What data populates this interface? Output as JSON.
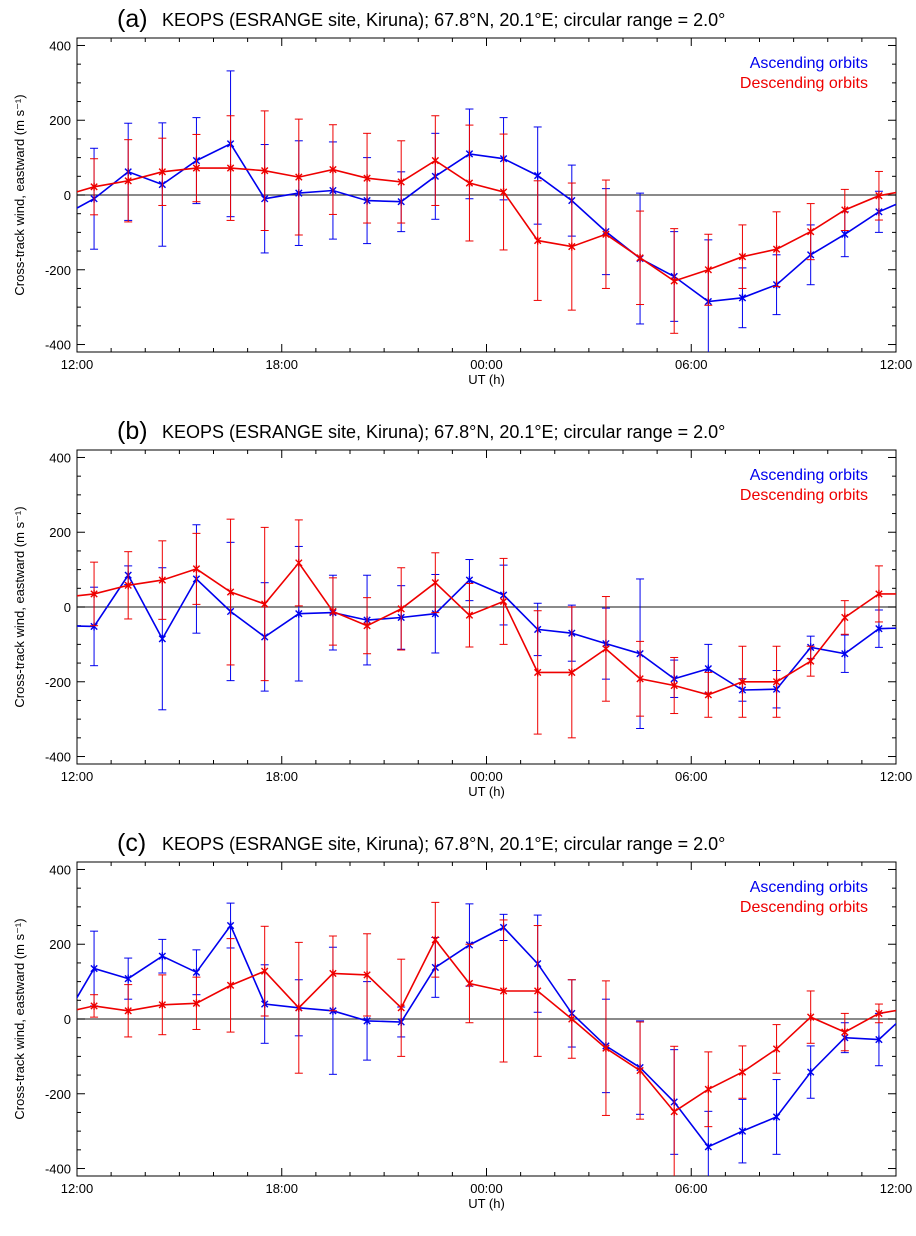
{
  "chart_data": [
    {
      "type": "line",
      "panel_label": "(a)",
      "title": "KEOPS (ESRANGE site, Kiruna); 67.8°N, 20.1°E; circular range = 2.0°",
      "xlabel": "UT (h)",
      "ylabel": "Cross-track wind, eastward (m s⁻¹)",
      "xlim": [
        12,
        36
      ],
      "ylim": [
        -420,
        420
      ],
      "x_ticks": [
        12,
        18,
        24,
        30,
        36
      ],
      "x_tick_labels": [
        "12:00",
        "18:00",
        "00:00",
        "06:00",
        "12:00"
      ],
      "y_ticks": [
        -400,
        -200,
        0,
        200,
        400
      ],
      "y_tick_labels": [
        "-400",
        "-200",
        "0",
        "200",
        "400"
      ],
      "legend": "top-right",
      "zero_line": true,
      "series": [
        {
          "name": "Ascending orbits",
          "color": "#0000ee",
          "x": [
            11.5,
            12.5,
            13.5,
            14.5,
            15.5,
            16.5,
            17.5,
            18.5,
            19.5,
            20.5,
            21.5,
            22.5,
            23.5,
            24.5,
            25.5,
            26.5,
            27.5,
            28.5,
            29.5,
            30.5,
            31.5,
            32.5,
            33.5,
            34.5,
            35.5,
            36.5
          ],
          "y": [
            -60,
            -10,
            62,
            28,
            92,
            137,
            -10,
            5,
            12,
            -15,
            -18,
            50,
            110,
            97,
            52,
            -15,
            -98,
            -170,
            -218,
            -285,
            -275,
            -240,
            -160,
            -105,
            -45,
            -5
          ],
          "err": [
            0,
            135,
            130,
            165,
            115,
            195,
            145,
            140,
            130,
            115,
            80,
            115,
            120,
            110,
            130,
            95,
            115,
            175,
            120,
            165,
            80,
            80,
            80,
            60,
            55,
            0
          ]
        },
        {
          "name": "Descending orbits",
          "color": "#ee0000",
          "x": [
            11.5,
            12.5,
            13.5,
            14.5,
            15.5,
            16.5,
            17.5,
            18.5,
            19.5,
            20.5,
            21.5,
            22.5,
            23.5,
            24.5,
            25.5,
            26.5,
            27.5,
            28.5,
            29.5,
            30.5,
            31.5,
            32.5,
            33.5,
            34.5,
            35.5,
            36.5
          ],
          "y": [
            -5,
            22,
            38,
            62,
            72,
            72,
            65,
            48,
            68,
            45,
            35,
            92,
            32,
            8,
            -122,
            -138,
            -105,
            -168,
            -230,
            -200,
            -165,
            -145,
            -98,
            -40,
            -2,
            15
          ],
          "err": [
            0,
            75,
            110,
            90,
            90,
            140,
            160,
            155,
            120,
            120,
            110,
            120,
            155,
            155,
            160,
            170,
            145,
            125,
            140,
            95,
            85,
            100,
            75,
            55,
            65,
            0
          ]
        }
      ]
    },
    {
      "type": "line",
      "panel_label": "(b)",
      "title": "KEOPS (ESRANGE site, Kiruna); 67.8°N, 20.1°E; circular range = 2.0°",
      "xlabel": "UT (h)",
      "ylabel": "Cross-track wind, eastward (m s⁻¹)",
      "xlim": [
        12,
        36
      ],
      "ylim": [
        -420,
        420
      ],
      "x_ticks": [
        12,
        18,
        24,
        30,
        36
      ],
      "x_tick_labels": [
        "12:00",
        "18:00",
        "00:00",
        "06:00",
        "12:00"
      ],
      "y_ticks": [
        -400,
        -200,
        0,
        200,
        400
      ],
      "y_tick_labels": [
        "-400",
        "-200",
        "0",
        "200",
        "400"
      ],
      "legend": "top-right",
      "zero_line": true,
      "series": [
        {
          "name": "Ascending orbits",
          "color": "#0000ee",
          "x": [
            11.5,
            12.5,
            13.5,
            14.5,
            15.5,
            16.5,
            17.5,
            18.5,
            19.5,
            20.5,
            21.5,
            22.5,
            23.5,
            24.5,
            25.5,
            26.5,
            27.5,
            28.5,
            29.5,
            30.5,
            31.5,
            32.5,
            33.5,
            34.5,
            35.5,
            36.5
          ],
          "y": [
            -50,
            -52,
            85,
            -85,
            75,
            -12,
            -80,
            -18,
            -15,
            -35,
            -28,
            -18,
            72,
            32,
            -60,
            -70,
            -98,
            -125,
            -192,
            -165,
            -222,
            -220,
            -108,
            -125,
            -58,
            -55
          ],
          "err": [
            0,
            105,
            25,
            190,
            145,
            185,
            145,
            180,
            100,
            120,
            85,
            105,
            55,
            80,
            70,
            75,
            95,
            200,
            50,
            65,
            30,
            50,
            30,
            50,
            50,
            0
          ]
        },
        {
          "name": "Descending orbits",
          "color": "#ee0000",
          "x": [
            11.5,
            12.5,
            13.5,
            14.5,
            15.5,
            16.5,
            17.5,
            18.5,
            19.5,
            20.5,
            21.5,
            22.5,
            23.5,
            24.5,
            25.5,
            26.5,
            27.5,
            28.5,
            29.5,
            30.5,
            31.5,
            32.5,
            33.5,
            34.5,
            35.5,
            36.5
          ],
          "y": [
            25,
            35,
            58,
            72,
            102,
            40,
            8,
            118,
            -12,
            -50,
            -5,
            65,
            -22,
            15,
            -175,
            -175,
            -112,
            -192,
            -210,
            -235,
            -200,
            -200,
            -145,
            -28,
            35,
            35
          ],
          "err": [
            0,
            85,
            90,
            105,
            95,
            195,
            205,
            115,
            90,
            75,
            110,
            80,
            85,
            115,
            165,
            175,
            140,
            100,
            75,
            60,
            95,
            95,
            40,
            45,
            75,
            0
          ]
        }
      ]
    },
    {
      "type": "line",
      "panel_label": "(c)",
      "title": "KEOPS (ESRANGE site, Kiruna); 67.8°N, 20.1°E; circular range = 2.0°",
      "xlabel": "UT (h)",
      "ylabel": "Cross-track wind, eastward (m s⁻¹)",
      "xlim": [
        12,
        36
      ],
      "ylim": [
        -420,
        420
      ],
      "x_ticks": [
        12,
        18,
        24,
        30,
        36
      ],
      "x_tick_labels": [
        "12:00",
        "18:00",
        "00:00",
        "06:00",
        "12:00"
      ],
      "y_ticks": [
        -400,
        -200,
        0,
        200,
        400
      ],
      "y_tick_labels": [
        "-400",
        "-200",
        "0",
        "200",
        "400"
      ],
      "legend": "top-right",
      "zero_line": true,
      "series": [
        {
          "name": "Ascending orbits",
          "color": "#0000ee",
          "x": [
            11.5,
            12.5,
            13.5,
            14.5,
            15.5,
            16.5,
            17.5,
            18.5,
            19.5,
            20.5,
            21.5,
            22.5,
            23.5,
            24.5,
            25.5,
            26.5,
            27.5,
            28.5,
            29.5,
            30.5,
            31.5,
            32.5,
            33.5,
            34.5,
            35.5,
            36.5
          ],
          "y": [
            -20,
            135,
            108,
            168,
            125,
            250,
            40,
            30,
            22,
            -5,
            -8,
            138,
            198,
            245,
            148,
            15,
            -72,
            -130,
            -222,
            -342,
            -300,
            -262,
            -142,
            -50,
            -55,
            30
          ],
          "err": [
            0,
            100,
            55,
            45,
            60,
            60,
            105,
            75,
            170,
            105,
            40,
            80,
            110,
            35,
            130,
            90,
            125,
            125,
            140,
            95,
            85,
            100,
            70,
            40,
            70,
            0
          ]
        },
        {
          "name": "Descending orbits",
          "color": "#ee0000",
          "x": [
            11.5,
            12.5,
            13.5,
            14.5,
            15.5,
            16.5,
            17.5,
            18.5,
            19.5,
            20.5,
            21.5,
            22.5,
            23.5,
            24.5,
            25.5,
            26.5,
            27.5,
            28.5,
            29.5,
            30.5,
            31.5,
            32.5,
            33.5,
            34.5,
            35.5,
            36.5
          ],
          "y": [
            15,
            35,
            22,
            38,
            42,
            90,
            128,
            30,
            122,
            118,
            30,
            212,
            95,
            75,
            75,
            0,
            -78,
            -138,
            -248,
            -188,
            -142,
            -80,
            5,
            -35,
            15,
            30
          ],
          "err": [
            0,
            30,
            70,
            80,
            70,
            125,
            120,
            175,
            100,
            110,
            130,
            100,
            105,
            190,
            175,
            105,
            180,
            130,
            175,
            100,
            70,
            65,
            70,
            50,
            25,
            0
          ]
        }
      ]
    }
  ]
}
